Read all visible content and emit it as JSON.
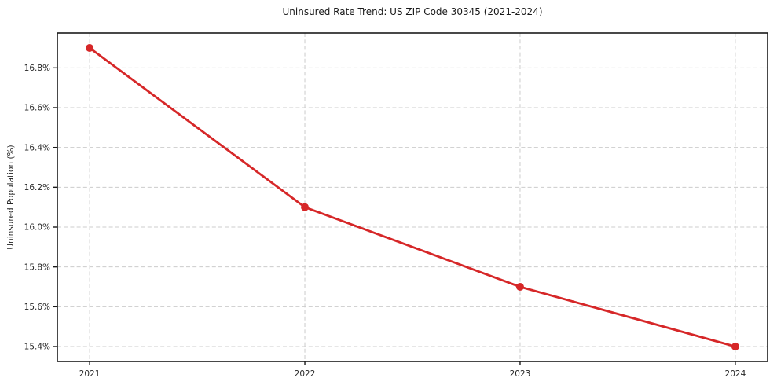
{
  "chart_data": {
    "type": "line",
    "title": "Uninsured Rate Trend: US ZIP Code 30345 (2021-2024)",
    "xlabel": "",
    "ylabel": "Uninsured Population (%)",
    "x": [
      2021,
      2022,
      2023,
      2024
    ],
    "xtick_labels": [
      "2021",
      "2022",
      "2023",
      "2024"
    ],
    "values": [
      16.9,
      16.1,
      15.7,
      15.4
    ],
    "yticks": [
      15.4,
      15.6,
      15.8,
      16.0,
      16.2,
      16.4,
      16.6,
      16.8
    ],
    "ytick_labels": [
      "15.4%",
      "15.6%",
      "15.8%",
      "16.0%",
      "16.2%",
      "16.4%",
      "16.6%",
      "16.8%"
    ],
    "xlim": [
      2020.85,
      2024.15
    ],
    "ylim": [
      15.325,
      16.975
    ],
    "grid": true,
    "grid_style": "dashed",
    "legend_position": "none",
    "line_color": "#d62728",
    "marker": "circle",
    "marker_size": 5,
    "background_color": "#ffffff",
    "axes_color": "#1a1a1a",
    "text_color": "#262626",
    "grid_color": "#cccccc"
  }
}
